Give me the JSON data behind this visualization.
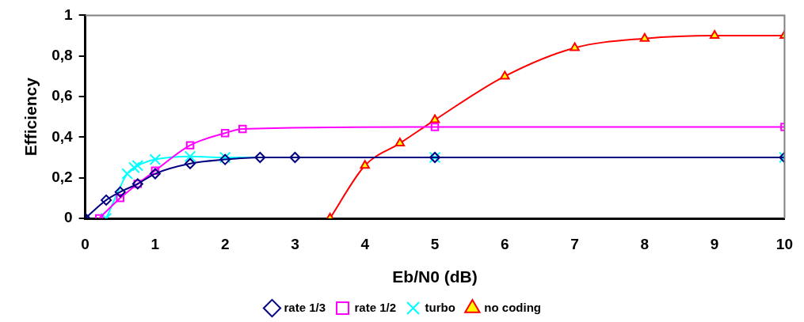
{
  "chart_data": {
    "type": "line",
    "xlabel": "Eb/N0 (dB)",
    "ylabel": "Efficiency",
    "xlim": [
      0,
      10
    ],
    "xticks": [
      0,
      1,
      2,
      3,
      4,
      5,
      6,
      7,
      8,
      9,
      10
    ],
    "ylim": [
      0,
      1
    ],
    "yticks": [
      0,
      {
        "value": 0.2,
        "label": "0,2"
      },
      {
        "value": 0.4,
        "label": "0,4"
      },
      {
        "value": 0.6,
        "label": "0,6"
      },
      {
        "value": 0.8,
        "label": "0,8"
      },
      1
    ],
    "grid": false,
    "legend": "bottom",
    "line_style": "solid",
    "series": [
      {
        "name": "rate 1/3",
        "color": "#000080",
        "marker": "diamond",
        "x": [
          0,
          0.3,
          0.5,
          0.75,
          1,
          1.5,
          2,
          2.5,
          3,
          5,
          10
        ],
        "values": [
          0,
          0.09,
          0.13,
          0.17,
          0.22,
          0.27,
          0.29,
          0.3,
          0.3,
          0.3,
          0.3
        ]
      },
      {
        "name": "rate 1/2",
        "color": "#ff00ff",
        "marker": "square",
        "x": [
          0.2,
          0.5,
          0.75,
          1,
          1.5,
          2,
          2.25,
          5,
          10
        ],
        "values": [
          0,
          0.1,
          0.17,
          0.235,
          0.36,
          0.42,
          0.44,
          0.45,
          0.45
        ]
      },
      {
        "name": "turbo",
        "color": "#00ffff",
        "marker": "cross",
        "x": [
          0.3,
          0.6,
          0.7,
          0.75,
          1,
          1.5,
          2,
          5,
          10
        ],
        "values": [
          0,
          0.22,
          0.25,
          0.26,
          0.29,
          0.305,
          0.3,
          0.3,
          0.3
        ]
      },
      {
        "name": "no coding",
        "color": "#ff0000",
        "marker": "triangle",
        "colors": [
          "#ffff00",
          "#ffff00",
          "#ffff00",
          "#ffff00",
          "#ffff00",
          "#ffff00",
          "#ffff00",
          "#ffff00",
          "#ffff00"
        ],
        "x": [
          3.5,
          4,
          4.5,
          5,
          6,
          7,
          8,
          9,
          10
        ],
        "values": [
          0,
          0.26,
          0.37,
          0.485,
          0.7,
          0.84,
          0.886,
          0.9,
          0.9
        ]
      }
    ]
  }
}
